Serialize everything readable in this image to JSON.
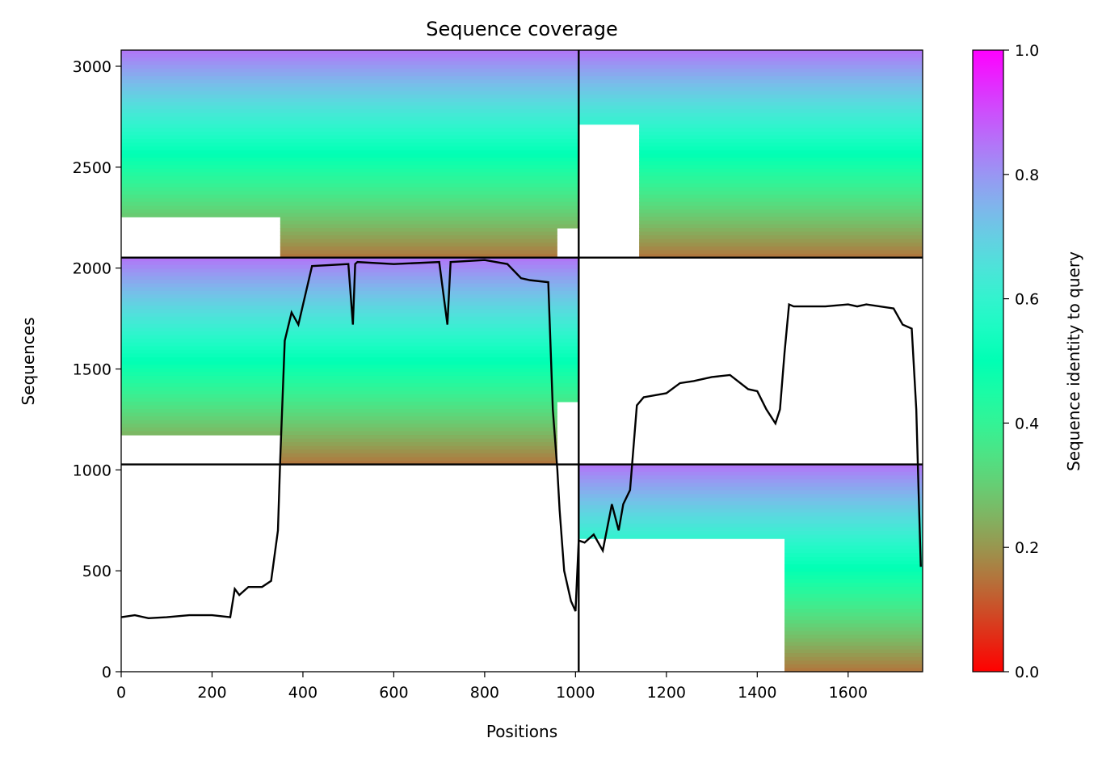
{
  "chart_data": {
    "type": "heatmap",
    "title": "Sequence coverage",
    "xlabel": "Positions",
    "ylabel": "Sequences",
    "xlim": [
      0,
      1764
    ],
    "ylim": [
      0,
      3080
    ],
    "x_ticks": [
      0,
      200,
      400,
      600,
      800,
      1000,
      1200,
      1400,
      1600
    ],
    "y_ticks": [
      0,
      500,
      1000,
      1500,
      2000,
      2500,
      3000
    ],
    "colorbar": {
      "label": "Sequence identity to query",
      "range": [
        0,
        1
      ],
      "ticks": [
        "0.0",
        "0.2",
        "0.4",
        "0.6",
        "0.8",
        "1.0"
      ],
      "colormap": "rainbow_r"
    },
    "block_dividers": {
      "x": [
        1007
      ],
      "y": [
        1027,
        2052
      ]
    },
    "blocks": [
      {
        "x": [
          0,
          1007
        ],
        "y": [
          2052,
          3080
        ],
        "start_low": 350,
        "start_high": 0,
        "start_switch": 0.8,
        "end_low": 960,
        "end_high": 1007,
        "end_switch": 0.85
      },
      {
        "x": [
          1007,
          1764
        ],
        "y": [
          2052,
          3080
        ],
        "start_low": 1140,
        "start_high": 1007,
        "start_switch": 0.35,
        "end_low": 1764,
        "end_high": 1764,
        "end_switch": 0.5
      },
      {
        "x": [
          0,
          1007
        ],
        "y": [
          1027,
          2052
        ],
        "start_low": 350,
        "start_high": 0,
        "start_switch": 0.85,
        "end_low": 960,
        "end_high": 1007,
        "end_switch": 0.7
      },
      {
        "x": [
          1007,
          1764
        ],
        "y": [
          0,
          1027
        ],
        "start_low": 1460,
        "start_high": 1007,
        "start_switch": 0.35,
        "end_low": 1764,
        "end_high": 1764,
        "end_switch": 0.5
      }
    ],
    "coverage_line": {
      "x": [
        0,
        30,
        60,
        100,
        150,
        200,
        240,
        250,
        260,
        280,
        310,
        330,
        345,
        350,
        360,
        375,
        390,
        420,
        500,
        510,
        515,
        520,
        600,
        700,
        718,
        725,
        800,
        850,
        880,
        900,
        940,
        950,
        960,
        965,
        975,
        990,
        1000,
        1007,
        1020,
        1040,
        1060,
        1080,
        1095,
        1105,
        1120,
        1135,
        1150,
        1200,
        1230,
        1260,
        1300,
        1340,
        1380,
        1400,
        1420,
        1440,
        1450,
        1460,
        1470,
        1480,
        1550,
        1600,
        1620,
        1640,
        1700,
        1720,
        1740,
        1750,
        1755,
        1760
      ],
      "y": [
        270,
        280,
        265,
        270,
        280,
        280,
        270,
        410,
        380,
        420,
        420,
        450,
        700,
        1050,
        1640,
        1780,
        1720,
        2010,
        2020,
        1720,
        2020,
        2030,
        2020,
        2030,
        1720,
        2030,
        2040,
        2020,
        1950,
        1940,
        1930,
        1300,
        1000,
        800,
        500,
        350,
        300,
        650,
        640,
        680,
        600,
        830,
        700,
        830,
        900,
        1320,
        1360,
        1380,
        1430,
        1440,
        1460,
        1470,
        1400,
        1390,
        1300,
        1230,
        1300,
        1580,
        1820,
        1810,
        1810,
        1820,
        1810,
        1820,
        1800,
        1720,
        1700,
        1300,
        900,
        520
      ]
    }
  }
}
